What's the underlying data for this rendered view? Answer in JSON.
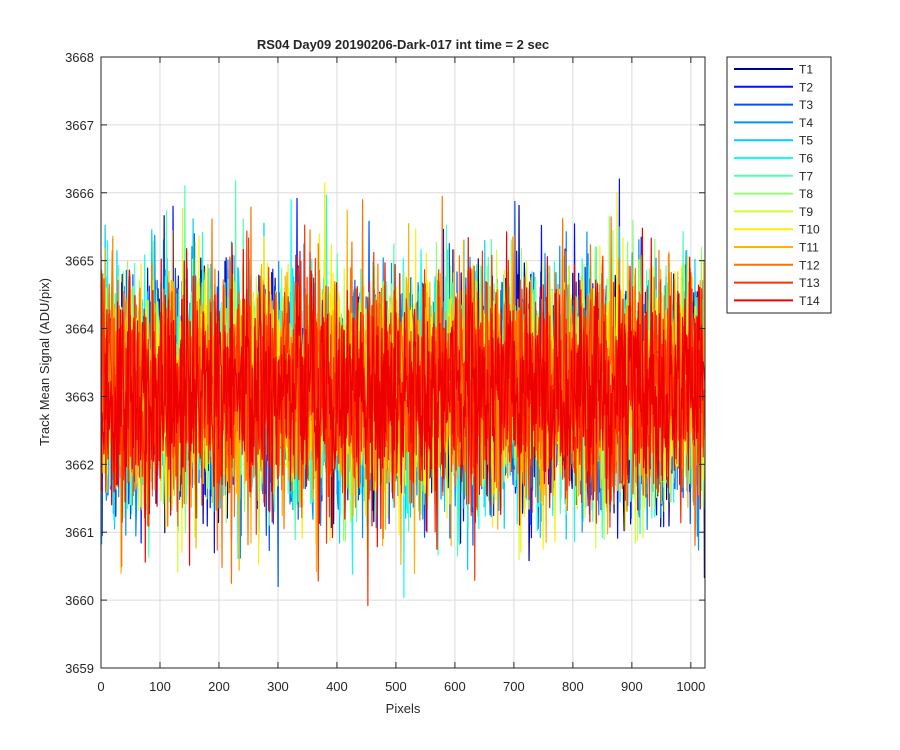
{
  "chart_data": {
    "type": "line",
    "title": "RS04 Day09 20190206-Dark-017 int time = 2 sec",
    "xlabel": "Pixels",
    "ylabel": "Track Mean Signal (ADU/pix)",
    "xlim": [
      0,
      1024
    ],
    "ylim": [
      3659,
      3668
    ],
    "xticks": [
      "0",
      "100",
      "200",
      "300",
      "400",
      "500",
      "600",
      "700",
      "800",
      "900",
      "1000"
    ],
    "yticks": [
      "3659",
      "3660",
      "3661",
      "3662",
      "3663",
      "3664",
      "3665",
      "3666",
      "3667",
      "3668"
    ],
    "grid": true,
    "legend_position": "outside-top-right",
    "series_summary": {
      "points_per_series": 1024,
      "mean": 3663.1,
      "typical_min": 3660.5,
      "typical_max": 3665.8,
      "max_observed": 3667.1,
      "min_observed": 3659.55
    },
    "series": [
      {
        "name": "T1",
        "color": "#00008F"
      },
      {
        "name": "T2",
        "color": "#0010FF"
      },
      {
        "name": "T3",
        "color": "#0050FF"
      },
      {
        "name": "T4",
        "color": "#0090FF"
      },
      {
        "name": "T5",
        "color": "#00CFFF"
      },
      {
        "name": "T6",
        "color": "#10FFEF"
      },
      {
        "name": "T7",
        "color": "#50FFAF"
      },
      {
        "name": "T8",
        "color": "#8FFF70"
      },
      {
        "name": "T9",
        "color": "#CFFF30"
      },
      {
        "name": "T10",
        "color": "#FFEF00"
      },
      {
        "name": "T11",
        "color": "#FFB000"
      },
      {
        "name": "T12",
        "color": "#FF7000"
      },
      {
        "name": "T13",
        "color": "#FF3000"
      },
      {
        "name": "T14",
        "color": "#EF0000"
      }
    ]
  }
}
